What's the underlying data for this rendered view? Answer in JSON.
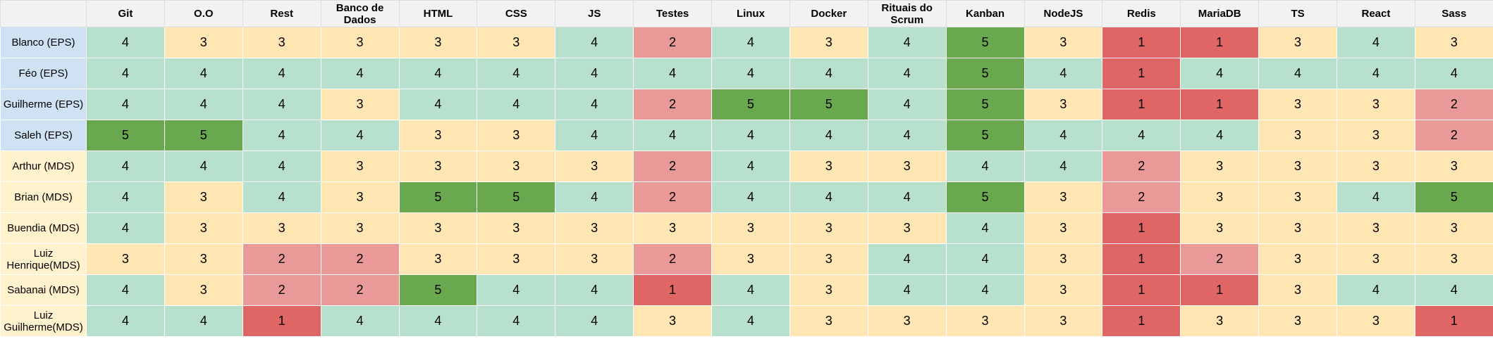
{
  "columns": [
    "Git",
    "O.O",
    "Rest",
    "Banco de Dados",
    "HTML",
    "CSS",
    "JS",
    "Testes",
    "Linux",
    "Docker",
    "Rituais do Scrum",
    "Kanban",
    "NodeJS",
    "Redis",
    "MariaDB",
    "TS",
    "React",
    "Sass"
  ],
  "rows": [
    {
      "name": "Blanco (EPS)",
      "team": "eps",
      "scores": [
        "4",
        "3",
        "3",
        "3",
        "3",
        "3",
        "4",
        "2",
        "4",
        "3",
        "4",
        "5",
        "3",
        "1",
        "1",
        "3",
        "4",
        "3"
      ]
    },
    {
      "name": "Féo (EPS)",
      "team": "eps",
      "scores": [
        "4",
        "4",
        "4",
        "4",
        "4",
        "4",
        "4",
        "4",
        "4",
        "4",
        "4",
        "5",
        "4",
        "1",
        "4",
        "4",
        "4",
        "4"
      ]
    },
    {
      "name": "Guilherme (EPS)",
      "team": "eps",
      "scores": [
        "4",
        "4",
        "4",
        "3",
        "4",
        "4",
        "4",
        "2",
        "5",
        "5",
        "4",
        "5",
        "3",
        "1",
        "1",
        "3",
        "3",
        "2"
      ]
    },
    {
      "name": "Saleh (EPS)",
      "team": "eps",
      "scores": [
        "5",
        "5",
        "4",
        "4",
        "3",
        "3",
        "4",
        "4",
        "4",
        "4",
        "4",
        "5",
        "4",
        "4",
        "4",
        "3",
        "3",
        "2"
      ]
    },
    {
      "name": "Arthur (MDS)",
      "team": "mds",
      "scores": [
        "4",
        "4",
        "4",
        "3",
        "3",
        "3",
        "3",
        "2",
        "4",
        "3",
        "3",
        "4",
        "4",
        "2",
        "3",
        "3",
        "3",
        "3"
      ]
    },
    {
      "name": "Brian (MDS)",
      "team": "mds",
      "scores": [
        "4",
        "3",
        "4",
        "3",
        "5",
        "5",
        "4",
        "2",
        "4",
        "4",
        "4",
        "5",
        "3",
        "2",
        "3",
        "3",
        "4",
        "5"
      ]
    },
    {
      "name": "Buendia (MDS)",
      "team": "mds",
      "scores": [
        "4",
        "3",
        "3",
        "3",
        "3",
        "3",
        "3",
        "3",
        "3",
        "3",
        "3",
        "4",
        "3",
        "1",
        "3",
        "3",
        "3",
        "3"
      ]
    },
    {
      "name": "Luiz Henrique(MDS)",
      "team": "mds",
      "scores": [
        "3",
        "3",
        "2",
        "2",
        "3",
        "3",
        "3",
        "2",
        "3",
        "3",
        "4",
        "4",
        "3",
        "1",
        "2",
        "3",
        "3",
        "3"
      ]
    },
    {
      "name": "Sabanai (MDS)",
      "team": "mds",
      "scores": [
        "4",
        "3",
        "2",
        "2",
        "5",
        "4",
        "4",
        "1",
        "4",
        "3",
        "4",
        "4",
        "3",
        "1",
        "1",
        "3",
        "4",
        "4"
      ]
    },
    {
      "name": "Luiz Guilherme(MDS)",
      "team": "mds",
      "scores": [
        "4",
        "4",
        "1",
        "4",
        "4",
        "4",
        "4",
        "3",
        "4",
        "3",
        "3",
        "3",
        "3",
        "1",
        "3",
        "3",
        "3",
        "1"
      ]
    }
  ],
  "colors": {
    "level_1": "#e06666",
    "level_2": "#ea9999",
    "level_3": "#ffe6b3",
    "level_4": "#b7e1cd",
    "level_5": "#6aa84f",
    "team_eps": "#cfe2f3",
    "team_mds": "#fff2cc",
    "header": "#f2f2f2"
  }
}
